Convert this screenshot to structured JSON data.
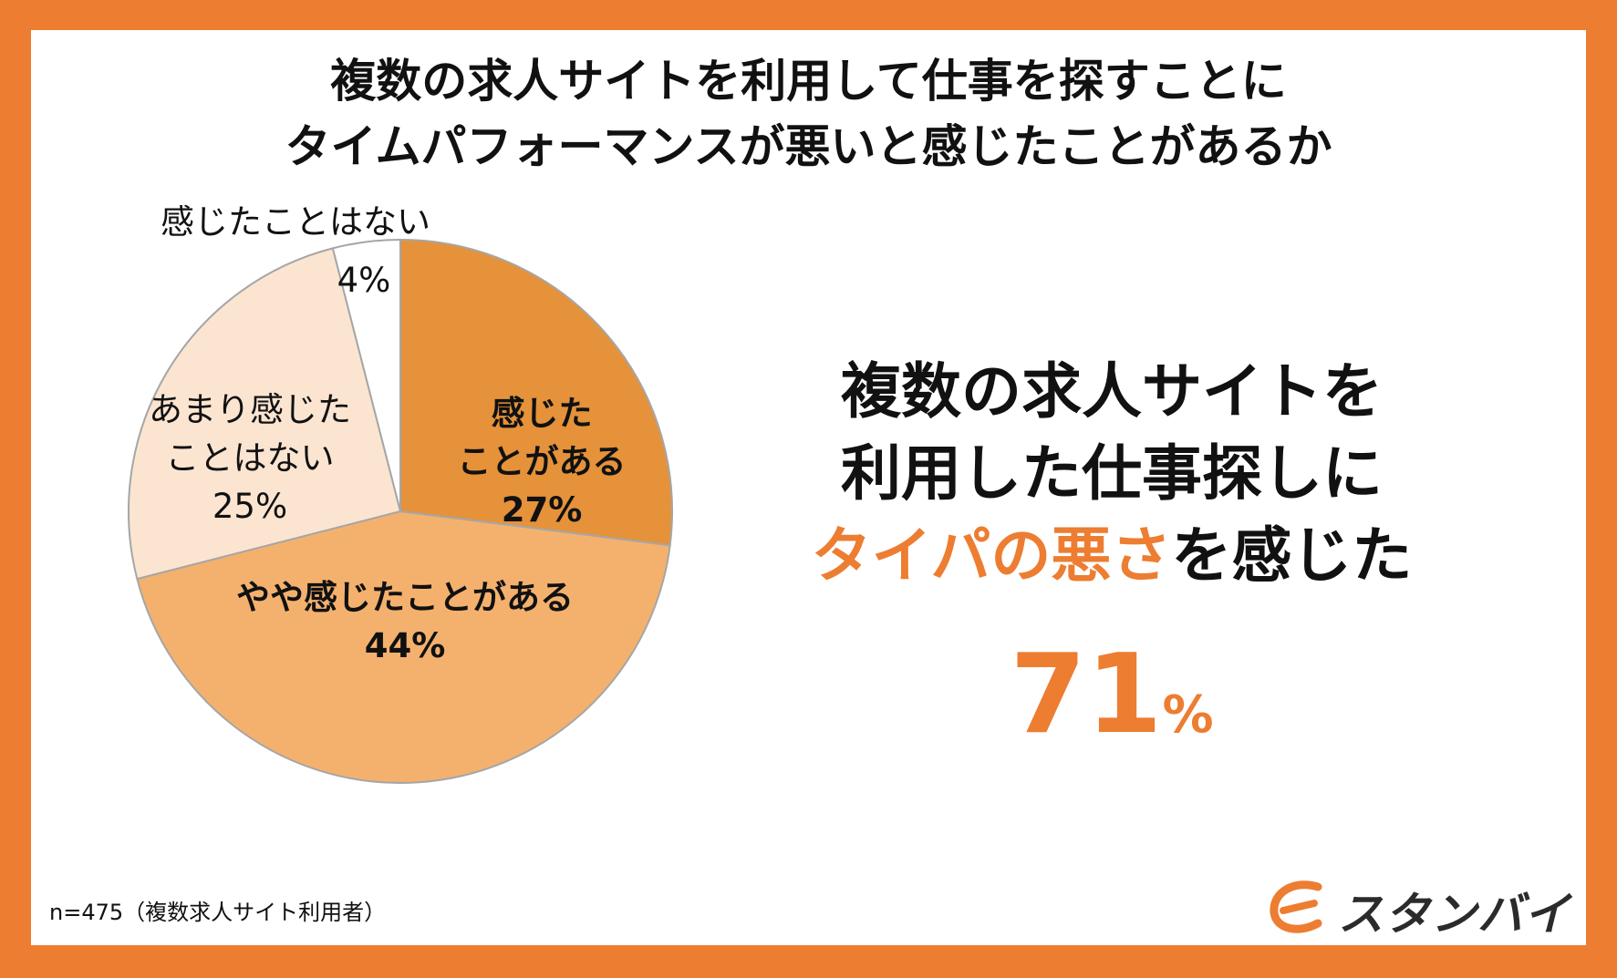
{
  "title": {
    "line1": "複数の求人サイトを利用して仕事を探すことに",
    "line2": "タイムパフォーマンスが悪いと感じたことがあるか"
  },
  "chart_data": {
    "type": "pie",
    "slices": [
      {
        "label_lines": [
          "感じた",
          "ことがある"
        ],
        "percent_text": "27%",
        "value": 27,
        "color": "#E5923A",
        "bold": true
      },
      {
        "label_lines": [
          "やや感じたことがある"
        ],
        "percent_text": "44%",
        "value": 44,
        "color": "#F4B16E",
        "bold": true
      },
      {
        "label_lines": [
          "あまり感じた",
          "ことはない"
        ],
        "percent_text": "25%",
        "value": 25,
        "color": "#FBE5D1",
        "bold": false
      },
      {
        "label_lines": [
          "感じたことはない"
        ],
        "percent_text": "4%",
        "value": 4,
        "color": "#FFFFFF",
        "bold": false
      }
    ],
    "start": "12 o'clock, clockwise",
    "edge_color": "#A6A6A6"
  },
  "headline": {
    "line1": "複数の求人サイトを",
    "line2": "利用した仕事探しに",
    "line3_accent": "タイパの悪さ",
    "line3_rest": "を感じた",
    "value": "71",
    "unit": "%"
  },
  "footnote": "n=475（複数求人サイト利用者）",
  "logo": {
    "text": "スタンバイ"
  },
  "colors": {
    "accent": "#ED7D31",
    "text": "#111111"
  }
}
